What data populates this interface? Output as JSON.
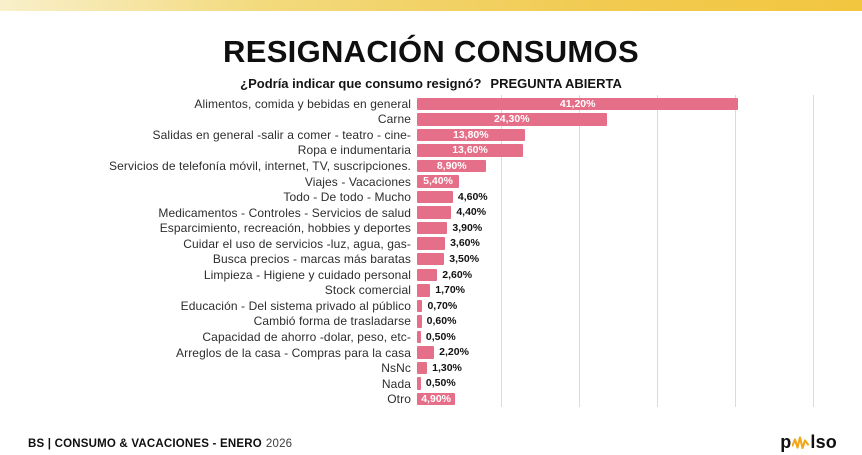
{
  "page": {
    "title": "RESIGNACIÓN CONSUMOS",
    "subtitle_question": "¿Podría indicar que consumo resignó?",
    "subtitle_tag": "PREGUNTA ABIERTA"
  },
  "chart_data": {
    "type": "bar",
    "orientation": "horizontal",
    "title": "RESIGNACIÓN CONSUMOS",
    "subtitle": "¿Podría indicar que consumo resignó? PREGUNTA ABIERTA",
    "xlabel": "",
    "ylabel": "",
    "xlim": [
      0,
      50
    ],
    "grid": true,
    "grid_step": 10,
    "legend": false,
    "bar_color": "#E56E88",
    "categories": [
      "Alimentos, comida y bebidas en general",
      "Carne",
      "Salidas en general -salir a comer - teatro - cine-",
      "Ropa e indumentaria",
      "Servicios de telefonía móvil, internet, TV, suscripciones.",
      "Viajes - Vacaciones",
      "Todo - De todo - Mucho",
      "Medicamentos - Controles - Servicios de salud",
      "Esparcimiento, recreación, hobbies y deportes",
      "Cuidar el uso de servicios -luz, agua, gas-",
      "Busca precios - marcas más baratas",
      "Limpieza - Higiene y cuidado personal",
      "Stock comercial",
      "Educación - Del sistema privado al público",
      "Cambió forma de trasladarse",
      "Capacidad de ahorro -dolar, peso, etc-",
      "Arreglos de la casa - Compras para la casa",
      "NsNc",
      "Nada",
      "Otro"
    ],
    "values": [
      41.2,
      24.3,
      13.8,
      13.6,
      8.9,
      5.4,
      4.6,
      4.4,
      3.9,
      3.6,
      3.5,
      2.6,
      1.7,
      0.7,
      0.6,
      0.5,
      2.2,
      1.3,
      0.5,
      4.9
    ],
    "value_labels": [
      "41,20%",
      "24,30%",
      "13,80%",
      "13,60%",
      "8,90%",
      "5,40%",
      "4,60%",
      "4,40%",
      "3,90%",
      "3,60%",
      "3,50%",
      "2,60%",
      "1,70%",
      "0,70%",
      "0,60%",
      "0,50%",
      "2,20%",
      "1,30%",
      "0,50%",
      "4,90%"
    ],
    "label_inside": [
      true,
      true,
      true,
      true,
      true,
      true,
      false,
      false,
      false,
      false,
      false,
      false,
      false,
      false,
      false,
      false,
      false,
      false,
      false,
      true
    ]
  },
  "footer": {
    "source": "BS | CONSUMO & VACACIONES - ENERO",
    "year": "2026",
    "logo": {
      "pre": "p",
      "post": "lso",
      "wave_icon": "waveform-icon",
      "wave_color": "#F2A71B"
    }
  },
  "theme": {
    "accent_gradient_start": "#F9F0CB",
    "accent_gradient_end": "#F3C63F",
    "bar_color": "#E56E88",
    "grid_color": "#DBDBDB",
    "text_color": "#1E1E1E"
  }
}
